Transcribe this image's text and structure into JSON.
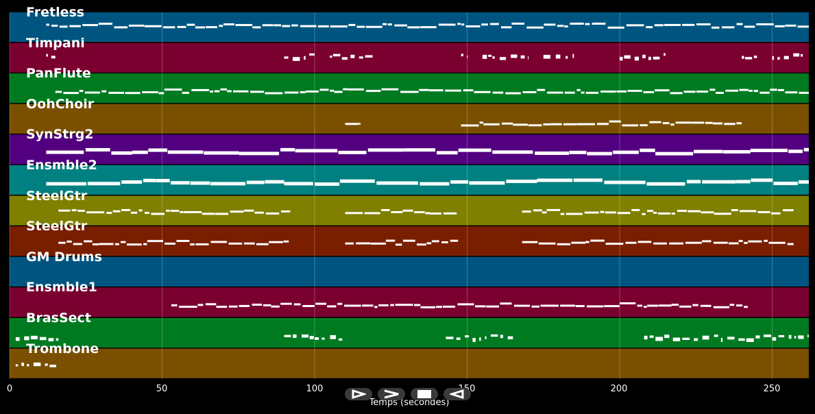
{
  "app": {
    "xlabel": "Temps (secondes)",
    "x_ticks": [
      "0",
      "50",
      "100",
      "150",
      "200",
      "250"
    ],
    "x_range": [
      0,
      262
    ],
    "controls": [
      {
        "name": "play-button",
        "icon": "play-icon"
      },
      {
        "name": "fast-forward-button",
        "icon": "fast-forward-icon"
      },
      {
        "name": "stop-button",
        "icon": "stop-icon"
      },
      {
        "name": "rewind-button",
        "icon": "rewind-icon"
      }
    ]
  },
  "tracks": [
    {
      "name": "Fretless",
      "color": "#005580"
    },
    {
      "name": "Timpani",
      "color": "#7a0030"
    },
    {
      "name": "PanFlute",
      "color": "#007a20"
    },
    {
      "name": "OohChoir",
      "color": "#7a5000"
    },
    {
      "name": "SynStrg2",
      "color": "#520080"
    },
    {
      "name": "Ensmble2",
      "color": "#008080"
    },
    {
      "name": "SteelGtr",
      "color": "#7f7f00"
    },
    {
      "name": "SteelGtr",
      "color": "#7a1e00"
    },
    {
      "name": "GM Drums",
      "color": "#005580"
    },
    {
      "name": "Ensmble1",
      "color": "#7a0030"
    },
    {
      "name": "BrasSect",
      "color": "#007a20"
    },
    {
      "name": "Trombone",
      "color": "#7a5000"
    }
  ],
  "chart_data": {
    "type": "scatter",
    "xlabel": "Temps (secondes)",
    "xlim": [
      0,
      262
    ],
    "x_ticks": [
      0,
      50,
      100,
      150,
      200,
      250
    ],
    "grid": true,
    "series": [
      {
        "name": "Fretless",
        "segments": [
          [
            12,
            262
          ]
        ],
        "pitch": 0.6,
        "style": "dense"
      },
      {
        "name": "Timpani",
        "segments": [
          [
            12,
            15
          ],
          [
            90,
            100
          ],
          [
            105,
            120
          ],
          [
            148,
            150
          ],
          [
            155,
            170
          ],
          [
            175,
            185
          ],
          [
            200,
            215
          ],
          [
            240,
            245
          ],
          [
            250,
            260
          ]
        ],
        "pitch": 0.6,
        "style": "sparse"
      },
      {
        "name": "PanFlute",
        "segments": [
          [
            15,
            262
          ]
        ],
        "pitch": 0.45,
        "style": "dense"
      },
      {
        "name": "OohChoir",
        "segments": [
          [
            110,
            115
          ],
          [
            148,
            165
          ],
          [
            165,
            240
          ]
        ],
        "pitch": 0.4,
        "style": "dense"
      },
      {
        "name": "SynStrg2",
        "segments": [
          [
            12,
            262
          ]
        ],
        "pitch": 0.5,
        "style": "thick"
      },
      {
        "name": "Ensmble2",
        "segments": [
          [
            12,
            90
          ],
          [
            90,
            262
          ]
        ],
        "pitch": 0.5,
        "style": "thick"
      },
      {
        "name": "SteelGtr",
        "segments": [
          [
            16,
            92
          ],
          [
            110,
            147
          ],
          [
            168,
            257
          ]
        ],
        "pitch": 0.5,
        "style": "dense"
      },
      {
        "name": "SteelGtr",
        "segments": [
          [
            16,
            92
          ],
          [
            110,
            147
          ],
          [
            168,
            257
          ]
        ],
        "pitch": 0.5,
        "style": "dense"
      },
      {
        "name": "GM Drums",
        "segments": [],
        "pitch": 0.5,
        "style": "none"
      },
      {
        "name": "Ensmble1",
        "segments": [
          [
            53,
            242
          ]
        ],
        "pitch": 0.45,
        "style": "dense"
      },
      {
        "name": "BrasSect",
        "segments": [
          [
            2,
            16
          ],
          [
            90,
            110
          ],
          [
            143,
            165
          ],
          [
            208,
            262
          ]
        ],
        "pitch": 0.4,
        "style": "sparse"
      },
      {
        "name": "Trombone",
        "segments": [
          [
            2,
            16
          ]
        ],
        "pitch": 0.5,
        "style": "sparse"
      }
    ]
  }
}
